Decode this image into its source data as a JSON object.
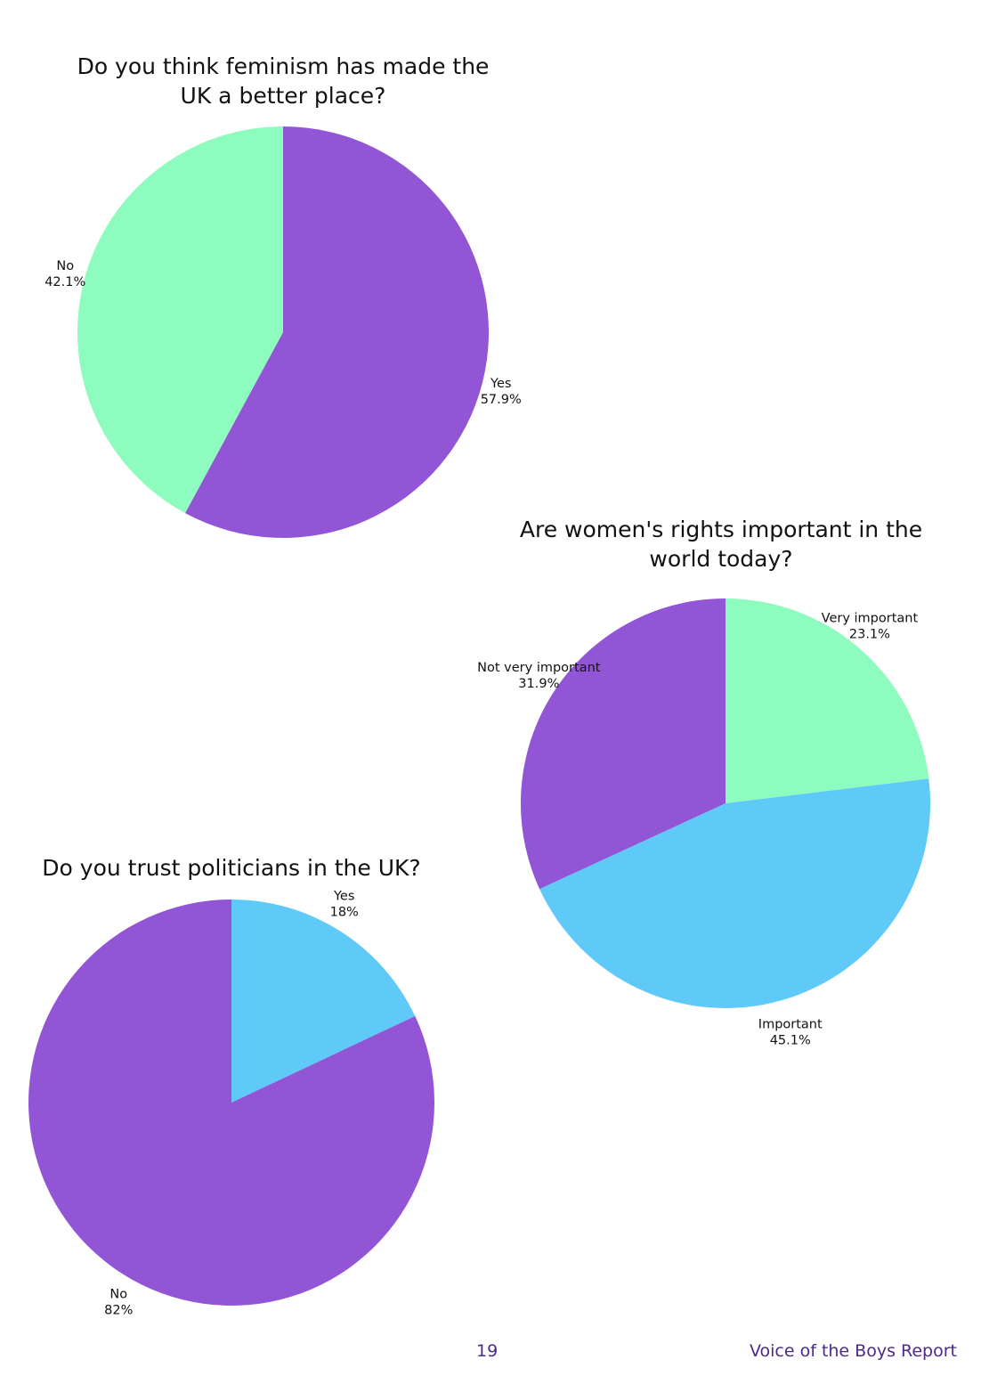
{
  "chart_data": [
    {
      "type": "pie",
      "title": "Do you think feminism has made the UK a better place?",
      "categories": [
        "Yes",
        "No"
      ],
      "values": [
        57.9,
        42.1
      ],
      "value_labels": [
        "57.9%",
        "42.1%"
      ],
      "colors": [
        "#9155d6",
        "#8efcbf"
      ]
    },
    {
      "type": "pie",
      "title": "Are women's rights important in the world today?",
      "categories": [
        "Very important",
        "Important",
        "Not very important"
      ],
      "values": [
        23.1,
        45.1,
        31.9
      ],
      "value_labels": [
        "23.1%",
        "45.1%",
        "31.9%"
      ],
      "colors": [
        "#8efcbf",
        "#5fcaf8",
        "#9155d6"
      ]
    },
    {
      "type": "pie",
      "title": "Do you trust politicians in the UK?",
      "categories": [
        "Yes",
        "No"
      ],
      "values": [
        18,
        82
      ],
      "value_labels": [
        "18%",
        "82%"
      ],
      "colors": [
        "#5fcaf8",
        "#9155d6"
      ]
    }
  ],
  "footer": {
    "page_number": 19,
    "text": "Voice of the Boys Report"
  }
}
